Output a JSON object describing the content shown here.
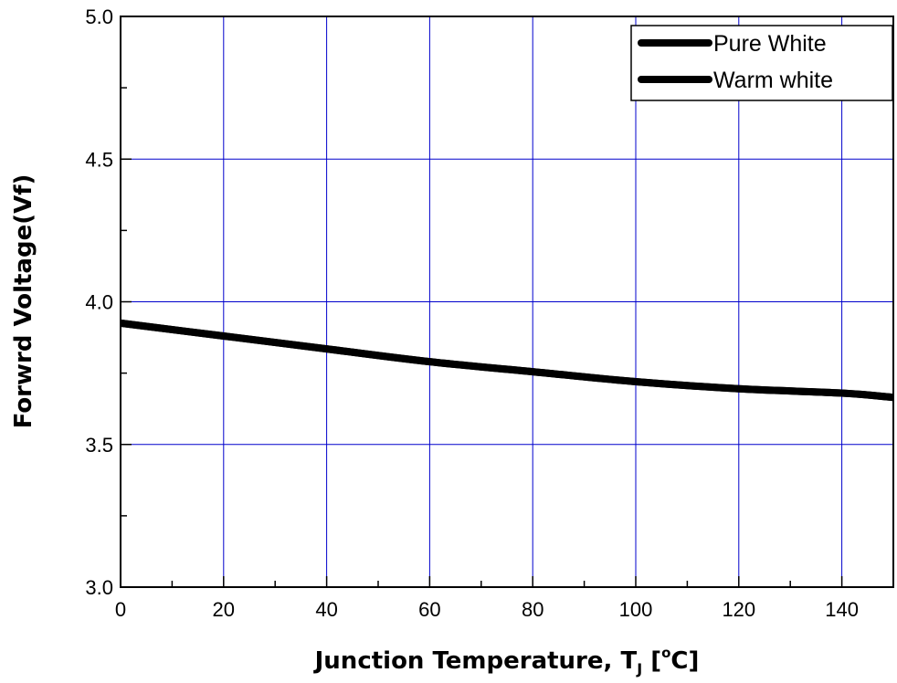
{
  "chart_data": {
    "type": "line",
    "xlabel": "Junction Temperature, T",
    "xlabel_subscript": "J",
    "xlabel_unit_open": " [",
    "xlabel_degree": "o",
    "xlabel_unit_close": "C]",
    "ylabel": "Forwrd Voltage(Vf)",
    "xlim": [
      0,
      150
    ],
    "ylim": [
      3.0,
      5.0
    ],
    "x_ticks": [
      0,
      20,
      40,
      60,
      80,
      100,
      120,
      140
    ],
    "x_tick_labels": [
      "0",
      "20",
      "40",
      "60",
      "80",
      "100",
      "120",
      "140"
    ],
    "y_ticks": [
      3.0,
      3.5,
      4.0,
      4.5,
      5.0
    ],
    "y_tick_labels": [
      "3.0",
      "3.5",
      "4.0",
      "4.5",
      "5.0"
    ],
    "grid": true,
    "grid_color": "#0000cc",
    "legend_position": "top-right",
    "series": [
      {
        "name": "Pure White",
        "color": "#000000",
        "x": [
          0,
          20,
          40,
          60,
          80,
          100,
          120,
          140,
          150
        ],
        "y": [
          3.925,
          3.88,
          3.835,
          3.79,
          3.755,
          3.72,
          3.695,
          3.68,
          3.665
        ]
      },
      {
        "name": "Warm white",
        "color": "#000000",
        "x": [
          0,
          20,
          40,
          60,
          80,
          100,
          120,
          140,
          150
        ],
        "y": [
          3.925,
          3.88,
          3.835,
          3.79,
          3.755,
          3.72,
          3.695,
          3.68,
          3.665
        ]
      }
    ]
  }
}
